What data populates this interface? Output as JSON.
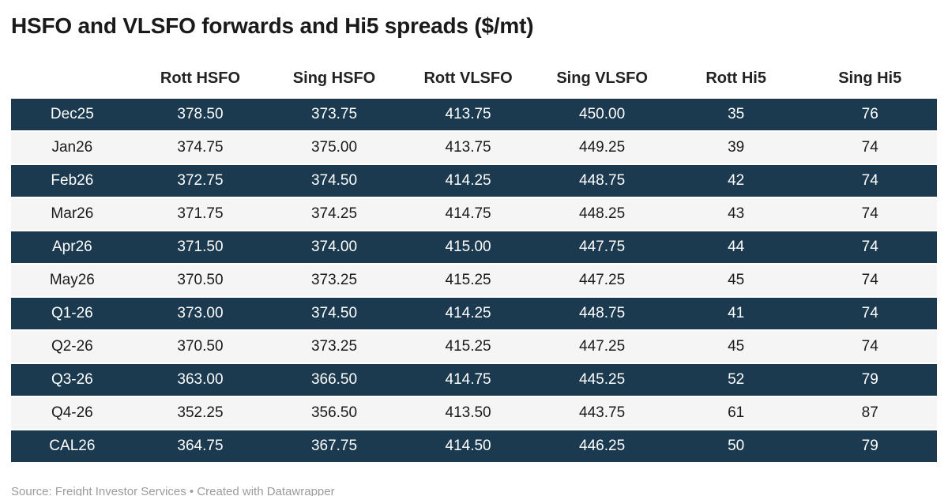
{
  "title": "HSFO and VLSFO forwards and Hi5 spreads ($/mt)",
  "footer": {
    "text": "Source: Freight Investor Services • Created with Datawrapper"
  },
  "colors": {
    "row_dark_bg": "#1b3a4f",
    "row_dark_text": "#ffffff",
    "row_light_bg": "#f5f5f5",
    "row_light_text": "#1a1a1a",
    "title_text": "#1a1a1a",
    "footer_text": "#9b9b9b"
  },
  "chart_data": {
    "type": "table",
    "title": "HSFO and VLSFO forwards and Hi5 spreads ($/mt)",
    "columns": [
      "",
      "Rott HSFO",
      "Sing HSFO",
      "Rott VLSFO",
      "Sing VLSFO",
      "Rott Hi5",
      "Sing Hi5"
    ],
    "rows": [
      {
        "period": "Dec25",
        "values": [
          "378.50",
          "373.75",
          "413.75",
          "450.00",
          "35",
          "76"
        ]
      },
      {
        "period": "Jan26",
        "values": [
          "374.75",
          "375.00",
          "413.75",
          "449.25",
          "39",
          "74"
        ]
      },
      {
        "period": "Feb26",
        "values": [
          "372.75",
          "374.50",
          "414.25",
          "448.75",
          "42",
          "74"
        ]
      },
      {
        "period": "Mar26",
        "values": [
          "371.75",
          "374.25",
          "414.75",
          "448.25",
          "43",
          "74"
        ]
      },
      {
        "period": "Apr26",
        "values": [
          "371.50",
          "374.00",
          "415.00",
          "447.75",
          "44",
          "74"
        ]
      },
      {
        "period": "May26",
        "values": [
          "370.50",
          "373.25",
          "415.25",
          "447.25",
          "45",
          "74"
        ]
      },
      {
        "period": "Q1-26",
        "values": [
          "373.00",
          "374.50",
          "414.25",
          "448.75",
          "41",
          "74"
        ]
      },
      {
        "period": "Q2-26",
        "values": [
          "370.50",
          "373.25",
          "415.25",
          "447.25",
          "45",
          "74"
        ]
      },
      {
        "period": "Q3-26",
        "values": [
          "363.00",
          "366.50",
          "414.75",
          "445.25",
          "52",
          "79"
        ]
      },
      {
        "period": "Q4-26",
        "values": [
          "352.25",
          "356.50",
          "413.50",
          "443.75",
          "61",
          "87"
        ]
      },
      {
        "period": "CAL26",
        "values": [
          "364.75",
          "367.75",
          "414.50",
          "446.25",
          "50",
          "79"
        ]
      }
    ],
    "layout": {
      "row_striping": "alternating dark/light, first row dark",
      "value_alignment": "center",
      "grid": "off"
    }
  }
}
